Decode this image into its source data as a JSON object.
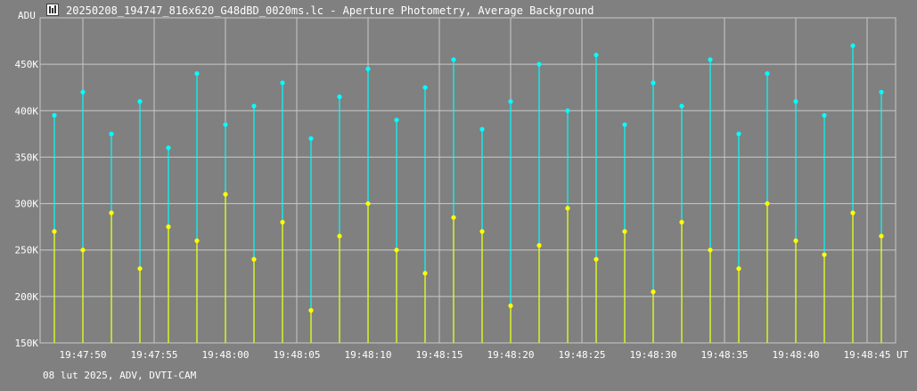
{
  "window": {
    "title": "20250208_194747_816x620_G48dBD_0020ms.lc - Aperture Photometry, Average Background",
    "icon": "light-curve-app-icon"
  },
  "footer": {
    "info": "08 lut 2025, ADV, DVTI-CAM"
  },
  "colors": {
    "background": "#808080",
    "grid": "#c8c8c8",
    "text": "#ffffff",
    "series_1": "#00ffff",
    "series_2": "#ffff00"
  },
  "chart_data": {
    "type": "scatter",
    "title": "20250208_194747_816x620_G48dBD_0020ms.lc - Aperture Photometry, Average Background",
    "xlabel": "UT",
    "ylabel": "ADU",
    "x_unit": "UT",
    "y_unit": "ADU",
    "grid": true,
    "drop_lines_to_baseline": true,
    "x_range": [
      "19:47:47",
      "19:48:47"
    ],
    "ylim": [
      150000,
      500000
    ],
    "x_ticks": [
      "19:47:50",
      "19:47:55",
      "19:48:00",
      "19:48:05",
      "19:48:10",
      "19:48:15",
      "19:48:20",
      "19:48:25",
      "19:48:30",
      "19:48:35",
      "19:48:40",
      "19:48:45"
    ],
    "y_ticks": [
      "150K",
      "200K",
      "250K",
      "300K",
      "350K",
      "400K",
      "450K"
    ],
    "y_tick_values": [
      150000,
      200000,
      250000,
      300000,
      350000,
      400000,
      450000
    ],
    "series": [
      {
        "color": "#00ffff",
        "x": [
          "19:47:48",
          "19:47:50",
          "19:47:52",
          "19:47:54",
          "19:47:56",
          "19:47:58",
          "19:48:00",
          "19:48:02",
          "19:48:04",
          "19:48:06",
          "19:48:08",
          "19:48:10",
          "19:48:12",
          "19:48:14",
          "19:48:16",
          "19:48:18",
          "19:48:20",
          "19:48:22",
          "19:48:24",
          "19:48:26",
          "19:48:28",
          "19:48:30",
          "19:48:32",
          "19:48:34",
          "19:48:36",
          "19:48:38",
          "19:48:40",
          "19:48:42",
          "19:48:44",
          "19:48:46"
        ],
        "values": [
          395000,
          420000,
          375000,
          410000,
          360000,
          440000,
          385000,
          405000,
          430000,
          370000,
          415000,
          445000,
          390000,
          425000,
          455000,
          380000,
          410000,
          450000,
          400000,
          460000,
          385000,
          430000,
          405000,
          455000,
          375000,
          440000,
          410000,
          395000,
          470000,
          420000
        ]
      },
      {
        "color": "#ffff00",
        "x": [
          "19:47:48",
          "19:47:50",
          "19:47:52",
          "19:47:54",
          "19:47:56",
          "19:47:58",
          "19:48:00",
          "19:48:02",
          "19:48:04",
          "19:48:06",
          "19:48:08",
          "19:48:10",
          "19:48:12",
          "19:48:14",
          "19:48:16",
          "19:48:18",
          "19:48:20",
          "19:48:22",
          "19:48:24",
          "19:48:26",
          "19:48:28",
          "19:48:30",
          "19:48:32",
          "19:48:34",
          "19:48:36",
          "19:48:38",
          "19:48:40",
          "19:48:42",
          "19:48:44",
          "19:48:46"
        ],
        "values": [
          270000,
          250000,
          290000,
          230000,
          275000,
          260000,
          310000,
          240000,
          280000,
          185000,
          265000,
          300000,
          250000,
          225000,
          285000,
          270000,
          190000,
          255000,
          295000,
          240000,
          270000,
          205000,
          280000,
          250000,
          230000,
          300000,
          260000,
          245000,
          290000,
          265000
        ]
      }
    ]
  }
}
